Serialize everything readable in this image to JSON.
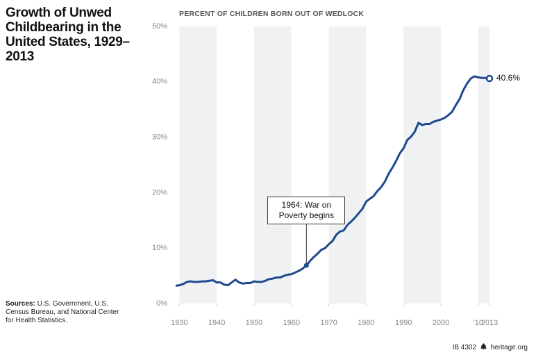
{
  "chart_data": {
    "type": "line",
    "title": "Growth of Unwed Childbearing in the United States, 1929–2013",
    "y_axis_label": "PERCENT OF CHILDREN BORN OUT OF WEDLOCK",
    "x": [
      1929,
      1930,
      1931,
      1932,
      1933,
      1934,
      1935,
      1936,
      1937,
      1938,
      1939,
      1940,
      1941,
      1942,
      1943,
      1944,
      1945,
      1946,
      1947,
      1948,
      1949,
      1950,
      1951,
      1952,
      1953,
      1954,
      1955,
      1956,
      1957,
      1958,
      1959,
      1960,
      1961,
      1962,
      1963,
      1964,
      1965,
      1966,
      1967,
      1968,
      1969,
      1970,
      1971,
      1972,
      1973,
      1974,
      1975,
      1976,
      1977,
      1978,
      1979,
      1980,
      1981,
      1982,
      1983,
      1984,
      1985,
      1986,
      1987,
      1988,
      1989,
      1990,
      1991,
      1992,
      1993,
      1994,
      1995,
      1996,
      1997,
      1998,
      1999,
      2000,
      2001,
      2002,
      2003,
      2004,
      2005,
      2006,
      2007,
      2008,
      2009,
      2010,
      2011,
      2012,
      2013
    ],
    "series": [
      {
        "name": "Percent of children born out of wedlock",
        "color": "#1d4a8c",
        "values": [
          3.2,
          3.3,
          3.5,
          3.9,
          4.0,
          3.9,
          3.9,
          4.0,
          4.0,
          4.1,
          4.2,
          3.8,
          3.8,
          3.4,
          3.3,
          3.8,
          4.3,
          3.8,
          3.6,
          3.7,
          3.7,
          4.0,
          3.9,
          3.9,
          4.1,
          4.4,
          4.5,
          4.7,
          4.7,
          5.0,
          5.2,
          5.3,
          5.6,
          5.9,
          6.3,
          6.9,
          7.7,
          8.4,
          9.0,
          9.7,
          10.0,
          10.7,
          11.3,
          12.4,
          13.0,
          13.2,
          14.2,
          14.8,
          15.5,
          16.3,
          17.1,
          18.4,
          18.9,
          19.4,
          20.3,
          21.0,
          22.0,
          23.4,
          24.5,
          25.7,
          27.1,
          28.0,
          29.5,
          30.1,
          31.0,
          32.6,
          32.2,
          32.4,
          32.4,
          32.8,
          33.0,
          33.2,
          33.5,
          34.0,
          34.6,
          35.8,
          36.9,
          38.5,
          39.7,
          40.6,
          41.0,
          40.8,
          40.7,
          40.7,
          40.6
        ],
        "value_labels": [
          null,
          null,
          null,
          null,
          null,
          null,
          null,
          null,
          null,
          null,
          null,
          null,
          null,
          null,
          null,
          null,
          null,
          null,
          null,
          null,
          null,
          null,
          null,
          null,
          null,
          null,
          null,
          null,
          null,
          null,
          null,
          null,
          null,
          null,
          null,
          null,
          null,
          null,
          null,
          null,
          null,
          null,
          null,
          null,
          null,
          null,
          null,
          null,
          null,
          null,
          null,
          null,
          null,
          null,
          null,
          null,
          null,
          null,
          null,
          null,
          null,
          null,
          null,
          null,
          null,
          null,
          null,
          null,
          null,
          null,
          null,
          null,
          null,
          null,
          null,
          null,
          null,
          null,
          null,
          null,
          null,
          null,
          null,
          null,
          "40.6%"
        ]
      }
    ],
    "annotations": [
      {
        "text": "1964: War on Poverty begins",
        "x": 1964
      }
    ],
    "xlim": [
      1929,
      2013
    ],
    "xticks": [
      1930,
      1940,
      1950,
      1960,
      1970,
      1980,
      1990,
      2000,
      {
        "value": 2010,
        "label": "'10"
      },
      2013
    ],
    "ylim": [
      0,
      50
    ],
    "yticks": [
      {
        "value": 0,
        "label": "0%"
      },
      {
        "value": 10,
        "label": "10%"
      },
      {
        "value": 20,
        "label": "20%"
      },
      {
        "value": 30,
        "label": "30%"
      },
      {
        "value": 40,
        "label": "40%"
      },
      {
        "value": 50,
        "label": "50%"
      }
    ],
    "shaded_bands": true,
    "source_label": "Sources:",
    "source": "U.S. Government, U.S. Census Bureau, and National Center for Health Statistics.",
    "footer_id": "IB 4302",
    "footer_site": "heritage.org"
  }
}
